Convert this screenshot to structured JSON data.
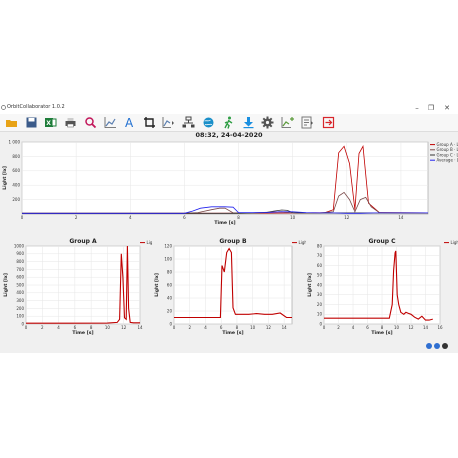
{
  "window": {
    "title": "OrbitCollaborator 1.0.2",
    "controls": {
      "minimize": "–",
      "maximize": "❐",
      "close": "✕"
    }
  },
  "toolbar": {
    "items": [
      {
        "name": "open-folder-icon",
        "color": "#e8a317"
      },
      {
        "name": "save-icon",
        "color": "#3b5b8a"
      },
      {
        "name": "excel-export-icon",
        "color": "#1e7d3a"
      },
      {
        "name": "print-icon",
        "color": "#555555"
      },
      {
        "name": "zoom-icon",
        "color": "#c2185b"
      },
      {
        "name": "line-chart-icon",
        "color": "#5b7fb0"
      },
      {
        "name": "font-icon",
        "color": "#1f6fd1"
      },
      {
        "name": "crop-icon",
        "color": "#222222"
      },
      {
        "name": "chart-options-icon",
        "color": "#5b7fb0"
      },
      {
        "name": "network-icon",
        "color": "#444444"
      },
      {
        "name": "globe-icon",
        "color": "#1a8fc9"
      },
      {
        "name": "run-icon",
        "color": "#2e9e44"
      },
      {
        "name": "download-icon",
        "color": "#1a8fe0"
      },
      {
        "name": "settings-gear-icon",
        "color": "#555555"
      },
      {
        "name": "chart-add-icon",
        "color": "#5b9a3a"
      },
      {
        "name": "chart-edit-icon",
        "color": "#777777"
      },
      {
        "name": "exit-icon",
        "color": "#d8262b"
      }
    ]
  },
  "timestamp": "08:32, 24-04-2020",
  "colors": {
    "groupA": "#c00000",
    "groupB": "#7a4a4a",
    "groupC": "#333333",
    "average": "#2222ee"
  },
  "status_icons": [
    {
      "name": "help-icon",
      "color": "#2f6fd1"
    },
    {
      "name": "info-icon",
      "color": "#2f6fd1"
    },
    {
      "name": "cursor-icon",
      "color": "#333333"
    }
  ],
  "chart_data": [
    {
      "type": "line",
      "xlabel": "Time [s]",
      "ylabel": "Light [lx]",
      "xlim": [
        0,
        15
      ],
      "ylim": [
        0,
        1000
      ],
      "xticks": [
        0,
        2,
        4,
        6,
        8,
        10,
        12,
        14
      ],
      "yticks": [
        200,
        400,
        600,
        800,
        "1 000"
      ],
      "legend": "top-right",
      "series": [
        {
          "name": "Group A · Light",
          "color": "#c00000",
          "x": [
            0,
            6,
            9,
            10.5,
            11.2,
            11.5,
            11.7,
            11.9,
            12.1,
            12.3,
            12.45,
            12.6,
            12.8,
            13.2,
            15
          ],
          "y": [
            10,
            10,
            12,
            15,
            20,
            60,
            850,
            940,
            700,
            60,
            840,
            940,
            150,
            20,
            15
          ]
        },
        {
          "name": "Group B · Light",
          "color": "#7a4a4a",
          "x": [
            0,
            6,
            6.5,
            7.0,
            7.3,
            7.5,
            7.8,
            8.5,
            9.2,
            9.6,
            10.0,
            11.0,
            11.5,
            11.7,
            11.9,
            12.1,
            12.3,
            12.5,
            12.7,
            12.9,
            13.2,
            15
          ],
          "y": [
            10,
            10,
            20,
            60,
            80,
            80,
            15,
            15,
            25,
            30,
            15,
            15,
            30,
            250,
            300,
            200,
            30,
            200,
            230,
            100,
            20,
            15
          ]
        },
        {
          "name": "Group C · Light",
          "color": "#333333",
          "x": [
            0,
            8,
            9.0,
            9.3,
            9.6,
            9.8,
            10.0,
            10.2,
            11.0,
            12.0,
            13.0,
            15
          ],
          "y": [
            10,
            10,
            20,
            40,
            55,
            50,
            20,
            15,
            15,
            15,
            15,
            15
          ]
        },
        {
          "name": "Average · Light",
          "color": "#2222ee",
          "x": [
            0,
            6.0,
            6.3,
            6.6,
            7.0,
            7.5,
            7.8,
            8.0,
            9.0,
            9.5,
            10.0,
            10.5,
            11.0,
            11.5,
            12.0,
            12.5,
            13.0,
            14.0,
            15
          ],
          "y": [
            10,
            10,
            40,
            80,
            100,
            100,
            95,
            20,
            20,
            30,
            30,
            20,
            15,
            15,
            10,
            10,
            15,
            15,
            15
          ]
        }
      ]
    },
    {
      "type": "line",
      "title": "Group A",
      "xlabel": "Time [s]",
      "ylabel": "Light [lx]",
      "xlim": [
        0,
        14
      ],
      "ylim": [
        0,
        1000
      ],
      "xticks": [
        0,
        2,
        4,
        6,
        8,
        10,
        12,
        14
      ],
      "yticks": [
        0,
        100,
        200,
        300,
        400,
        500,
        600,
        700,
        800,
        900,
        1000
      ],
      "legend": "top-right",
      "series": [
        {
          "name": "Light",
          "color": "#c00000",
          "x": [
            0,
            5,
            10,
            11.2,
            11.5,
            11.7,
            11.9,
            12.1,
            12.3,
            12.45,
            12.6,
            12.8,
            13.2,
            14
          ],
          "y": [
            10,
            10,
            12,
            20,
            60,
            900,
            600,
            80,
            60,
            1000,
            200,
            20,
            15,
            15
          ]
        }
      ]
    },
    {
      "type": "line",
      "title": "Group B",
      "xlabel": "Time [s]",
      "ylabel": "Light [lx]",
      "xlim": [
        0,
        15
      ],
      "ylim": [
        0,
        120
      ],
      "xticks": [
        0,
        2,
        4,
        6,
        8,
        10,
        12,
        14
      ],
      "yticks": [
        0,
        20,
        40,
        60,
        80,
        100,
        120
      ],
      "legend": "top-right",
      "series": [
        {
          "name": "Light",
          "color": "#c00000",
          "x": [
            0,
            5.9,
            6.1,
            6.4,
            6.7,
            7.0,
            7.3,
            7.5,
            7.8,
            8.5,
            9.5,
            10.5,
            11.5,
            12.5,
            13.5,
            14.3,
            15
          ],
          "y": [
            10,
            10,
            90,
            80,
            110,
            116,
            110,
            25,
            15,
            15,
            15,
            16,
            15,
            15,
            17,
            10,
            10
          ]
        }
      ]
    },
    {
      "type": "line",
      "title": "Group C",
      "xlabel": "Time [s]",
      "ylabel": "Light [lx]",
      "xlim": [
        0,
        16
      ],
      "ylim": [
        0,
        80
      ],
      "xticks": [
        0,
        2,
        4,
        6,
        8,
        10,
        12,
        14,
        16
      ],
      "yticks": [
        0,
        10,
        20,
        30,
        40,
        50,
        60,
        70,
        80
      ],
      "legend": "top-right",
      "series": [
        {
          "name": "Light",
          "color": "#c00000",
          "x": [
            0,
            9.0,
            9.4,
            9.6,
            9.8,
            9.9,
            10.1,
            10.3,
            10.6,
            11.0,
            11.3,
            11.6,
            12.0,
            12.5,
            13.0,
            13.5,
            14.0,
            14.5,
            15
          ],
          "y": [
            6,
            6,
            20,
            55,
            73,
            75,
            30,
            20,
            12,
            10,
            12,
            11,
            10,
            7,
            5,
            8,
            4,
            4,
            5
          ]
        }
      ]
    }
  ]
}
